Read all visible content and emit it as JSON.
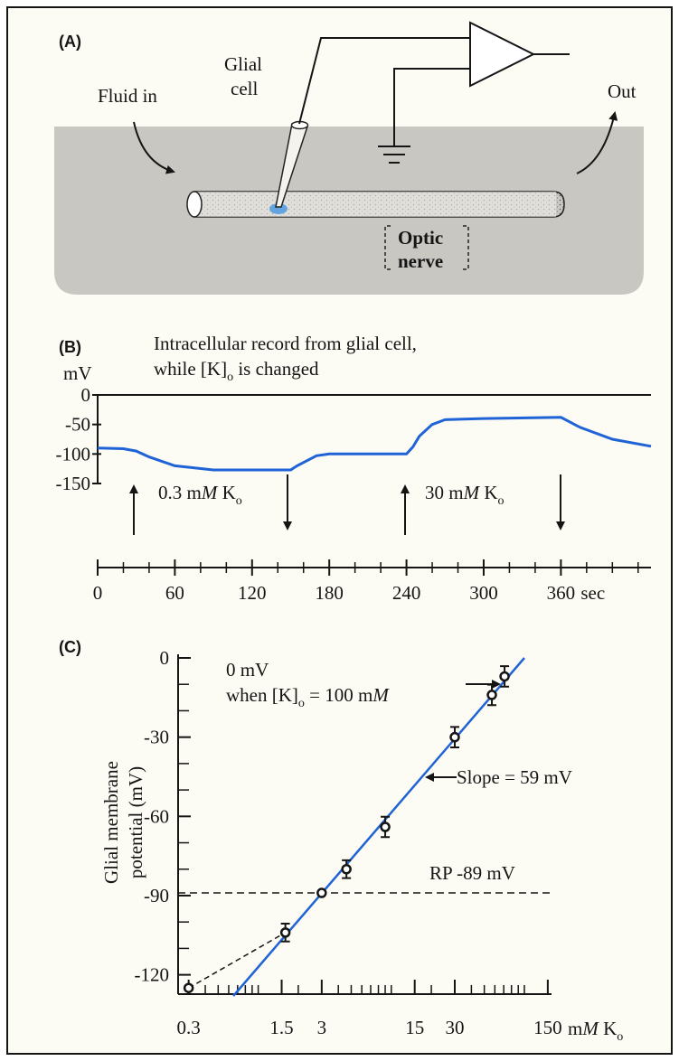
{
  "diagram": {
    "panel": "(A)",
    "electrode_label": [
      "Glial",
      "cell"
    ],
    "inflow": "Fluid in",
    "outflow": "Out",
    "nerve_label": [
      "Optic",
      "nerve"
    ]
  },
  "chart_data": [
    {
      "type": "line",
      "panel": "(B)",
      "title": "Intracellular record from glial cell,",
      "subtitle_parts": [
        "while [K]",
        "o",
        " is changed"
      ],
      "ylabel": "mV",
      "xlabel": "sec",
      "x": [
        0,
        20,
        30,
        40,
        60,
        90,
        120,
        150,
        155,
        170,
        180,
        240,
        245,
        250,
        260,
        270,
        300,
        360,
        375,
        400,
        430
      ],
      "values": [
        -90,
        -91,
        -95,
        -105,
        -120,
        -127,
        -127,
        -127,
        -120,
        -103,
        -100,
        -100,
        -88,
        -70,
        -50,
        -42,
        -40,
        -38,
        -55,
        -75,
        -87
      ],
      "color": "#1f63d6",
      "xlim": [
        0,
        430
      ],
      "xticks": [
        0,
        60,
        120,
        180,
        240,
        300,
        360
      ],
      "xminorticks": [
        20,
        40,
        80,
        100,
        140,
        160,
        200,
        220,
        260,
        280,
        320,
        340,
        380,
        400,
        420
      ],
      "ylim": [
        -150,
        0
      ],
      "yticks": [
        0,
        -50,
        -100,
        -150
      ],
      "annotations": [
        [
          "0.3 m",
          "M",
          " K",
          "o"
        ],
        [
          "30 m",
          "M",
          " K",
          "o"
        ]
      ]
    },
    {
      "type": "scatter",
      "panel": "(C)",
      "ylabel": [
        "Glial membrane",
        "potential (mV)"
      ],
      "xlabel_parts": [
        "m",
        "M",
        " K",
        "o"
      ],
      "log_x": true,
      "x": [
        0.3,
        1.6,
        3,
        4.6,
        9,
        30,
        57,
        71
      ],
      "values": [
        -125,
        -104,
        -89,
        -80,
        -64,
        -30,
        -14,
        -7
      ],
      "errors": [
        0,
        2,
        0,
        2,
        2.5,
        2.5,
        2.5,
        2.5
      ],
      "fit": {
        "x": [
          0.65,
          100
        ],
        "values": [
          -128,
          0
        ],
        "color": "#1f63d6"
      },
      "xlim": [
        0.25,
        160
      ],
      "xticks": [
        0.3,
        1.5,
        3,
        15,
        30,
        150
      ],
      "xminorticks": [
        0.4,
        0.5,
        0.6,
        0.7,
        0.8,
        0.9,
        1,
        2,
        4,
        5,
        6,
        7,
        8,
        9,
        10,
        20,
        40,
        50,
        60,
        70,
        80,
        90,
        100
      ],
      "ylim": [
        -128,
        0
      ],
      "yticks": [
        0,
        -30,
        -60,
        -90,
        -120
      ],
      "yminorticks": [
        -10,
        -20,
        -40,
        -50,
        -70,
        -80,
        -100,
        -110
      ],
      "reference_line": {
        "value": -89,
        "label": "RP -89 mV"
      },
      "annotation_top": "0 mV",
      "annotation_parts": [
        "when [K]",
        "o",
        " = 100 m",
        "M"
      ],
      "slope_label": "Slope = 59 mV"
    }
  ]
}
